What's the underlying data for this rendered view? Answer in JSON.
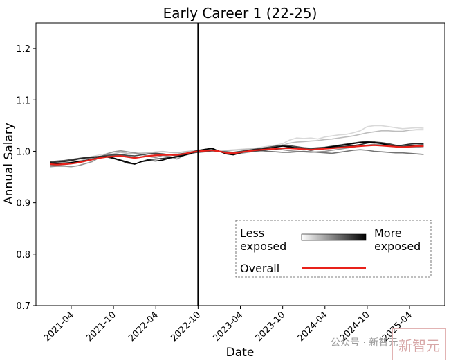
{
  "chart_data": {
    "type": "line",
    "title": "Early Career 1 (22-25)",
    "xlabel": "Date",
    "ylabel": "Annual Salary",
    "ylim": [
      0.7,
      1.25
    ],
    "yticks": [
      "0.7",
      "0.8",
      "0.9",
      "1.0",
      "1.1",
      "1.2"
    ],
    "xticks": [
      "2021-04",
      "2021-10",
      "2022-04",
      "2022-10",
      "2023-04",
      "2023-10",
      "2024-04",
      "2024-10",
      "2025-04"
    ],
    "xlim": [
      "2020-11",
      "2025-09"
    ],
    "x_start": "2021-01",
    "x_end": "2025-06",
    "reference_line": "2022-10",
    "grid": false,
    "legend": {
      "placement": "bottom-right",
      "less_label": "Less\nexposed",
      "more_label": "More\nexposed",
      "overall_label": "Overall"
    },
    "series": [
      {
        "color": "#d9d9d9",
        "values": [
          0.978,
          0.977,
          0.978,
          0.98,
          0.984,
          0.987,
          0.99,
          0.993,
          0.995,
          0.998,
          1.0,
          0.996,
          0.997,
          0.998,
          0.997,
          0.999,
          1.0,
          0.998,
          0.997,
          0.999,
          1.001,
          1.002,
          1.001,
          1.0,
          1.0,
          1.002,
          1.003,
          1.004,
          1.005,
          1.006,
          1.008,
          1.01,
          1.012,
          1.015,
          1.022,
          1.026,
          1.025,
          1.026,
          1.024,
          1.028,
          1.03,
          1.032,
          1.033,
          1.036,
          1.04,
          1.048,
          1.05,
          1.05,
          1.048,
          1.046,
          1.044,
          1.045,
          1.046,
          1.045
        ]
      },
      {
        "color": "#bdbdbd",
        "values": [
          0.976,
          0.975,
          0.976,
          0.978,
          0.981,
          0.984,
          0.987,
          0.99,
          0.993,
          0.995,
          0.998,
          0.996,
          0.995,
          0.996,
          0.997,
          0.998,
          0.999,
          0.998,
          0.997,
          0.999,
          1.0,
          1.001,
          1.002,
          1.001,
          1.0,
          1.001,
          1.002,
          1.003,
          1.004,
          1.005,
          1.006,
          1.008,
          1.01,
          1.012,
          1.016,
          1.018,
          1.019,
          1.02,
          1.021,
          1.023,
          1.024,
          1.026,
          1.028,
          1.03,
          1.033,
          1.036,
          1.038,
          1.04,
          1.04,
          1.039,
          1.039,
          1.041,
          1.042,
          1.042
        ]
      },
      {
        "color": "#969696",
        "values": [
          0.97,
          0.971,
          0.971,
          0.97,
          0.972,
          0.976,
          0.98,
          0.988,
          0.995,
          0.999,
          1.001,
          0.999,
          0.997,
          0.994,
          0.99,
          0.988,
          0.992,
          0.99,
          0.985,
          0.992,
          0.995,
          0.999,
          1.0,
          1.002,
          1.0,
          0.997,
          0.995,
          0.996,
          0.998,
          1.0,
          1.003,
          1.004,
          1.005,
          1.003,
          1.001,
          1.0,
          0.999,
          0.998,
          0.999,
          1.0,
          1.002,
          1.004,
          1.006,
          1.008,
          1.01,
          1.012,
          1.014,
          1.013,
          1.012,
          1.01,
          1.009,
          1.008,
          1.008,
          1.007
        ]
      },
      {
        "color": "#737373",
        "values": [
          0.972,
          0.973,
          0.974,
          0.976,
          0.978,
          0.981,
          0.984,
          0.987,
          0.99,
          0.992,
          0.993,
          0.99,
          0.988,
          0.989,
          0.991,
          0.993,
          0.994,
          0.993,
          0.991,
          0.994,
          0.997,
          0.999,
          1.0,
          1.001,
          1.0,
          0.998,
          0.997,
          0.998,
          0.999,
          1.0,
          1.001,
          1.0,
          0.999,
          0.998,
          0.998,
          0.999,
          1.0,
          0.999,
          0.998,
          0.997,
          0.996,
          0.998,
          1.0,
          1.002,
          1.003,
          1.002,
          1.0,
          0.999,
          0.998,
          0.997,
          0.997,
          0.996,
          0.995,
          0.994
        ]
      },
      {
        "color": "#4a4a4a",
        "values": [
          0.98,
          0.981,
          0.982,
          0.984,
          0.986,
          0.988,
          0.989,
          0.99,
          0.992,
          0.993,
          0.994,
          0.992,
          0.991,
          0.993,
          0.995,
          0.996,
          0.995,
          0.993,
          0.994,
          0.996,
          0.997,
          0.998,
          0.999,
          1.001,
          1.0,
          0.999,
          0.998,
          1.0,
          1.002,
          1.004,
          1.006,
          1.008,
          1.01,
          1.012,
          1.011,
          1.009,
          1.007,
          1.006,
          1.007,
          1.008,
          1.01,
          1.012,
          1.014,
          1.016,
          1.018,
          1.019,
          1.018,
          1.017,
          1.015,
          1.012,
          1.01,
          1.011,
          1.012,
          1.013
        ]
      },
      {
        "color": "#262626",
        "values": [
          0.978,
          0.979,
          0.98,
          0.982,
          0.985,
          0.987,
          0.988,
          0.99,
          0.989,
          0.986,
          0.982,
          0.977,
          0.975,
          0.98,
          0.984,
          0.985,
          0.986,
          0.988,
          0.99,
          0.994,
          0.998,
          1.002,
          1.004,
          1.005,
          1.0,
          0.996,
          0.994,
          0.998,
          1.0,
          1.001,
          1.002,
          1.003,
          1.004,
          1.006,
          1.008,
          1.007,
          1.005,
          1.004,
          1.005,
          1.007,
          1.008,
          1.009,
          1.01,
          1.011,
          1.013,
          1.016,
          1.018,
          1.016,
          1.013,
          1.01,
          1.012,
          1.014,
          1.015,
          1.015
        ]
      },
      {
        "color": "#000000",
        "values": [
          0.977,
          0.976,
          0.977,
          0.978,
          0.98,
          0.982,
          0.985,
          0.988,
          0.99,
          0.987,
          0.983,
          0.979,
          0.975,
          0.98,
          0.982,
          0.981,
          0.983,
          0.987,
          0.989,
          0.992,
          0.996,
          1.001,
          1.004,
          1.006,
          1.0,
          0.995,
          0.993,
          0.997,
          1.001,
          1.003,
          1.004,
          1.006,
          1.008,
          1.01,
          1.009,
          1.006,
          1.004,
          1.002,
          1.004,
          1.007,
          1.009,
          1.011,
          1.013,
          1.015,
          1.017,
          1.018,
          1.017,
          1.015,
          1.012,
          1.009,
          1.008,
          1.01,
          1.011,
          1.01
        ]
      },
      {
        "color": "#e8211a",
        "overall": true,
        "values": [
          0.975,
          0.974,
          0.975,
          0.976,
          0.978,
          0.981,
          0.984,
          0.987,
          0.989,
          0.99,
          0.991,
          0.989,
          0.987,
          0.989,
          0.991,
          0.992,
          0.993,
          0.993,
          0.993,
          0.995,
          0.998,
          1.0,
          1.001,
          1.002,
          1.0,
          0.997,
          0.996,
          0.998,
          1.0,
          1.002,
          1.003,
          1.004,
          1.005,
          1.006,
          1.006,
          1.005,
          1.004,
          1.003,
          1.004,
          1.005,
          1.006,
          1.007,
          1.008,
          1.009,
          1.01,
          1.011,
          1.012,
          1.011,
          1.01,
          1.009,
          1.008,
          1.009,
          1.01,
          1.01
        ]
      }
    ]
  },
  "watermark": {
    "text": "公众号 · 新智元",
    "logo_text": "新智元"
  }
}
